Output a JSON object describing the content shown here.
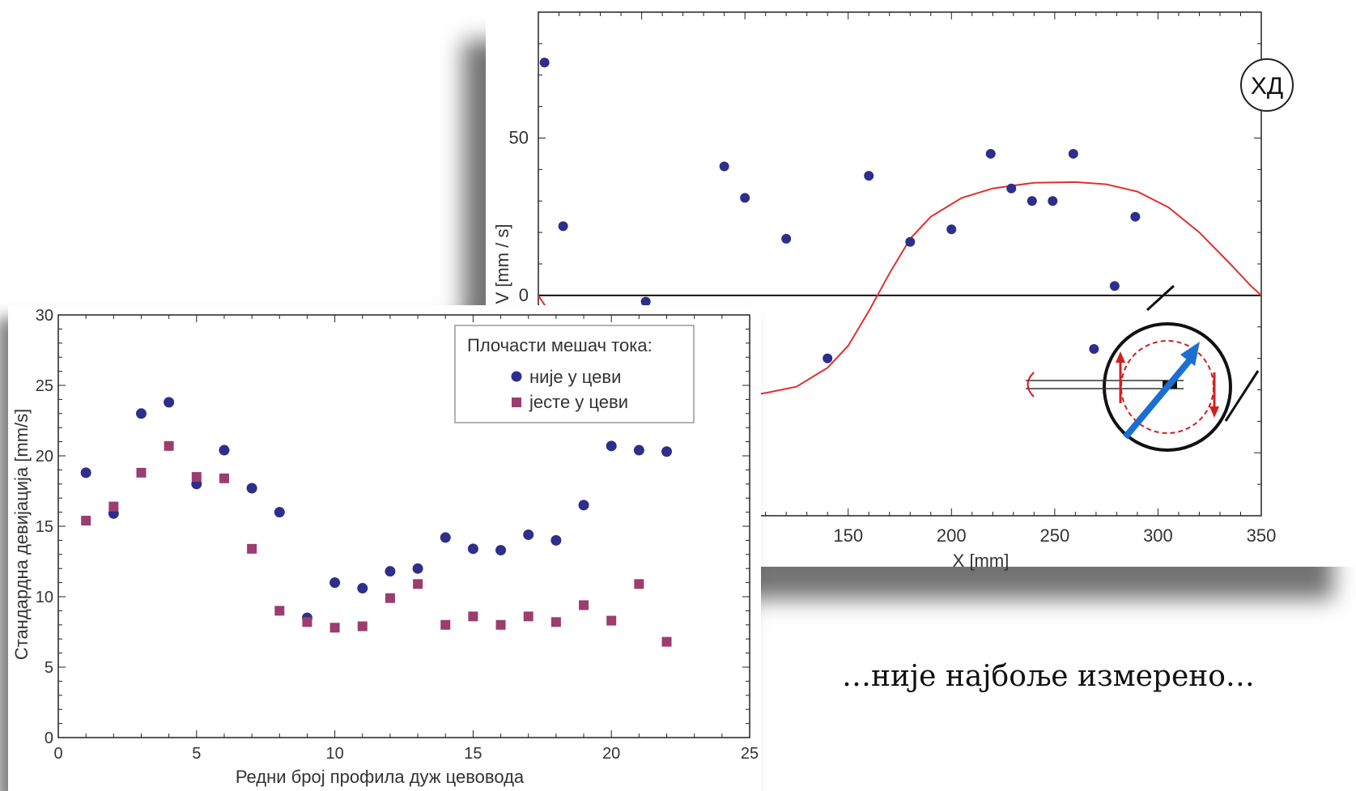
{
  "chart_data": [
    {
      "id": "velocity_profile",
      "type": "scatter",
      "xlabel": "X [mm]",
      "ylabel": "V [mm / s]",
      "xlim": [
        0,
        350
      ],
      "ylim": [
        -70,
        90
      ],
      "x_ticks": [
        "100",
        "150",
        "200",
        "250",
        "300",
        "350"
      ],
      "y_ticks": [
        "50",
        "0"
      ],
      "badge": "ХД",
      "series": [
        {
          "marker": "circle",
          "color": "#2e2e8c",
          "points": [
            [
              3,
              74
            ],
            [
              12,
              22
            ],
            [
              32,
              -8
            ],
            [
              52,
              -2
            ],
            [
              68,
              -20
            ],
            [
              90,
              41
            ],
            [
              100,
              31
            ],
            [
              120,
              18
            ],
            [
              140,
              -20
            ],
            [
              160,
              38
            ],
            [
              180,
              17
            ],
            [
              200,
              21
            ],
            [
              219,
              45
            ],
            [
              229,
              34
            ],
            [
              239,
              30
            ],
            [
              249,
              30
            ],
            [
              259,
              45
            ],
            [
              269,
              -17
            ],
            [
              279,
              3
            ],
            [
              289,
              25
            ]
          ]
        },
        {
          "line": true,
          "color": "#e03030",
          "points": [
            [
              0,
              0
            ],
            [
              10,
              -10
            ],
            [
              20,
              -18
            ],
            [
              40,
              -27
            ],
            [
              60,
              -31
            ],
            [
              80,
              -32
            ],
            [
              100,
              -32
            ],
            [
              110,
              -31
            ],
            [
              125,
              -29
            ],
            [
              140,
              -23
            ],
            [
              150,
              -16
            ],
            [
              160,
              -5
            ],
            [
              170,
              7
            ],
            [
              180,
              18
            ],
            [
              190,
              25
            ],
            [
              205,
              31
            ],
            [
              220,
              34
            ],
            [
              240,
              35.8
            ],
            [
              260,
              36
            ],
            [
              275,
              35.3
            ],
            [
              290,
              33
            ],
            [
              305,
              28
            ],
            [
              320,
              20
            ],
            [
              335,
              10
            ],
            [
              345,
              3
            ],
            [
              350,
              0
            ]
          ]
        }
      ],
      "zero_line": true,
      "inset": {
        "description": "mixer schematic",
        "arrow_color": "#1a6fd1",
        "circle_color": "#d02020"
      }
    },
    {
      "id": "std_deviation",
      "type": "scatter",
      "xlabel": "Редни број профила дуж цевовода",
      "ylabel": "Стандардна девијација [mm/s]",
      "xlim": [
        0,
        25
      ],
      "ylim": [
        0,
        30
      ],
      "x_ticks": [
        "0",
        "5",
        "10",
        "15",
        "20",
        "25"
      ],
      "y_ticks": [
        "0",
        "5",
        "10",
        "15",
        "20",
        "25",
        "30"
      ],
      "legend": {
        "title": "Плочасти мешач тока:",
        "position": "top-right"
      },
      "series": [
        {
          "name": "није у цеви",
          "marker": "circle",
          "color": "#2e2e8c",
          "points": [
            [
              1,
              18.8
            ],
            [
              2,
              15.9
            ],
            [
              3,
              23.0
            ],
            [
              4,
              23.8
            ],
            [
              5,
              18.0
            ],
            [
              6,
              20.4
            ],
            [
              7,
              17.7
            ],
            [
              8,
              16.0
            ],
            [
              9,
              8.5
            ],
            [
              10,
              11.0
            ],
            [
              11,
              10.6
            ],
            [
              12,
              11.8
            ],
            [
              13,
              12.0
            ],
            [
              14,
              14.2
            ],
            [
              15,
              13.4
            ],
            [
              16,
              13.3
            ],
            [
              17,
              14.4
            ],
            [
              18,
              14.0
            ],
            [
              19,
              16.5
            ],
            [
              20,
              20.7
            ],
            [
              21,
              20.4
            ],
            [
              22,
              20.3
            ]
          ]
        },
        {
          "name": "јесте у цеви",
          "marker": "square",
          "color": "#9c3d6e",
          "points": [
            [
              1,
              15.4
            ],
            [
              2,
              16.4
            ],
            [
              3,
              18.8
            ],
            [
              4,
              20.7
            ],
            [
              5,
              18.5
            ],
            [
              6,
              18.4
            ],
            [
              7,
              13.4
            ],
            [
              8,
              9.0
            ],
            [
              9,
              8.2
            ],
            [
              10,
              7.8
            ],
            [
              11,
              7.9
            ],
            [
              12,
              9.9
            ],
            [
              13,
              10.9
            ],
            [
              14,
              8.0
            ],
            [
              15,
              8.6
            ],
            [
              16,
              8.0
            ],
            [
              17,
              8.6
            ],
            [
              18,
              8.2
            ],
            [
              19,
              9.4
            ],
            [
              20,
              8.3
            ],
            [
              21,
              10.9
            ],
            [
              22,
              6.8
            ]
          ]
        }
      ]
    }
  ],
  "caption": "…није најбоље измерено…"
}
